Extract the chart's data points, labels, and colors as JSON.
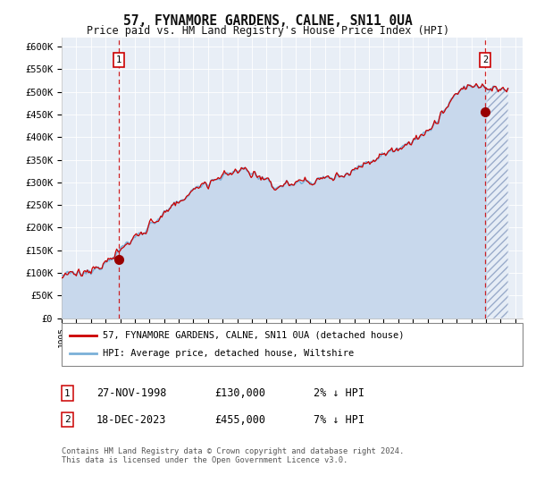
{
  "title": "57, FYNAMORE GARDENS, CALNE, SN11 0UA",
  "subtitle": "Price paid vs. HM Land Registry's House Price Index (HPI)",
  "legend_line1": "57, FYNAMORE GARDENS, CALNE, SN11 0UA (detached house)",
  "legend_line2": "HPI: Average price, detached house, Wiltshire",
  "annotation1_date": "27-NOV-1998",
  "annotation1_price": "£130,000",
  "annotation1_hpi": "2% ↓ HPI",
  "annotation2_date": "18-DEC-2023",
  "annotation2_price": "£455,000",
  "annotation2_hpi": "7% ↓ HPI",
  "footer": "Contains HM Land Registry data © Crown copyright and database right 2024.\nThis data is licensed under the Open Government Licence v3.0.",
  "hpi_fill_color": "#c8d8ec",
  "hpi_line_color": "#7ab0d8",
  "price_color": "#cc0000",
  "background_plot": "#e8eef6",
  "sale1_x": 1998.92,
  "sale1_y": 130000,
  "sale2_x": 2023.96,
  "sale2_y": 455000,
  "ylim": [
    0,
    620000
  ],
  "xlim_start": 1995.0,
  "xlim_end": 2026.5,
  "yticks": [
    0,
    50000,
    100000,
    150000,
    200000,
    250000,
    300000,
    350000,
    400000,
    450000,
    500000,
    550000,
    600000
  ],
  "ytick_labels": [
    "£0",
    "£50K",
    "£100K",
    "£150K",
    "£200K",
    "£250K",
    "£300K",
    "£350K",
    "£400K",
    "£450K",
    "£500K",
    "£550K",
    "£600K"
  ],
  "xticks": [
    1995,
    1996,
    1997,
    1998,
    1999,
    2000,
    2001,
    2002,
    2003,
    2004,
    2005,
    2006,
    2007,
    2008,
    2009,
    2010,
    2011,
    2012,
    2013,
    2014,
    2015,
    2016,
    2017,
    2018,
    2019,
    2020,
    2021,
    2022,
    2023,
    2024,
    2025,
    2026
  ],
  "hatch_start": 2024.0
}
